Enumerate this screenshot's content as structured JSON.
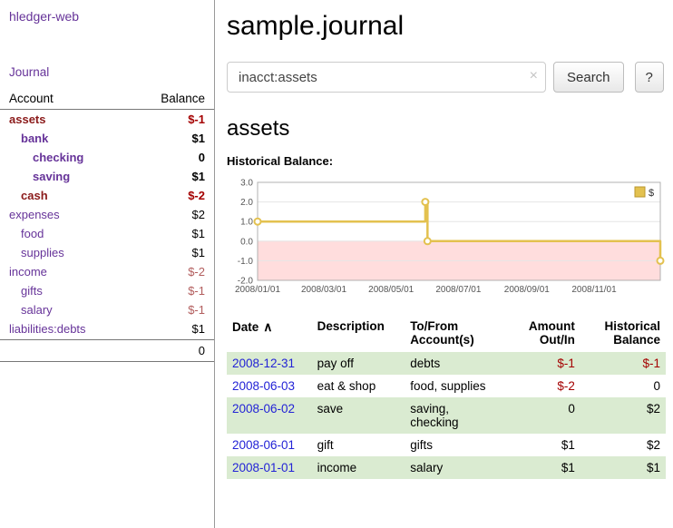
{
  "colors": {
    "accent_purple": "#663399",
    "name_maroon": "#8b1a1a",
    "negative_red": "#a40000",
    "negative_soft": "#b25d5d",
    "date_link_blue": "#2323d6",
    "row_green": "#daebd1",
    "chart_gold": "#e3c14f",
    "chart_region_pink": "#ffdddd"
  },
  "sidebar": {
    "app_title": "hledger-web",
    "journal_link": "Journal",
    "headers": {
      "account": "Account",
      "balance": "Balance"
    },
    "accounts": [
      {
        "label": "assets",
        "balance": "$-1",
        "indent": 0,
        "bold": true,
        "label_style": "maroon",
        "balance_style": "neg"
      },
      {
        "label": "bank",
        "balance": "$1",
        "indent": 1,
        "bold": true,
        "label_style": "purple",
        "balance_style": "normal"
      },
      {
        "label": "checking",
        "balance": "0",
        "indent": 2,
        "bold": true,
        "label_style": "purple",
        "balance_style": "normal"
      },
      {
        "label": "saving",
        "balance": "$1",
        "indent": 2,
        "bold": true,
        "label_style": "purple",
        "balance_style": "normal"
      },
      {
        "label": "cash",
        "balance": "$-2",
        "indent": 1,
        "bold": true,
        "label_style": "maroon",
        "balance_style": "neg"
      },
      {
        "label": "expenses",
        "balance": "$2",
        "indent": 0,
        "bold": false,
        "label_style": "purple",
        "balance_style": "normal"
      },
      {
        "label": "food",
        "balance": "$1",
        "indent": 1,
        "bold": false,
        "label_style": "purple",
        "balance_style": "normal"
      },
      {
        "label": "supplies",
        "balance": "$1",
        "indent": 1,
        "bold": false,
        "label_style": "purple",
        "balance_style": "normal"
      },
      {
        "label": "income",
        "balance": "$-2",
        "indent": 0,
        "bold": false,
        "label_style": "purple",
        "balance_style": "neg-soft"
      },
      {
        "label": "gifts",
        "balance": "$-1",
        "indent": 1,
        "bold": false,
        "label_style": "purple",
        "balance_style": "neg-soft"
      },
      {
        "label": "salary",
        "balance": "$-1",
        "indent": 1,
        "bold": false,
        "label_style": "purple",
        "balance_style": "neg-soft"
      },
      {
        "label": "liabilities:debts",
        "balance": "$1",
        "indent": 0,
        "bold": false,
        "label_style": "purple",
        "balance_style": "normal"
      }
    ],
    "total": "0"
  },
  "main": {
    "title": "sample.journal",
    "search": {
      "value": "inacct:assets",
      "clear_icon": "×",
      "button_label": "Search",
      "help_label": "?"
    },
    "account_heading": "assets",
    "chart_label": "Historical Balance:",
    "table": {
      "sort_icon": "∧",
      "headers": {
        "date": "Date",
        "description": "Description",
        "accounts": "To/From\nAccount(s)",
        "amount": "Amount\nOut/In",
        "balance": "Historical\nBalance"
      },
      "rows": [
        {
          "date": "2008-12-31",
          "description": "pay off",
          "accounts": "debts",
          "amount": "$-1",
          "amount_negative": true,
          "balance": "$-1",
          "balance_negative": true
        },
        {
          "date": "2008-06-03",
          "description": "eat & shop",
          "accounts": "food, supplies",
          "amount": "$-2",
          "amount_negative": true,
          "balance": "0",
          "balance_negative": false
        },
        {
          "date": "2008-06-02",
          "description": "save",
          "accounts": "saving,\nchecking",
          "amount": "0",
          "amount_negative": false,
          "balance": "$2",
          "balance_negative": false
        },
        {
          "date": "2008-06-01",
          "description": "gift",
          "accounts": "gifts",
          "amount": "$1",
          "amount_negative": false,
          "balance": "$2",
          "balance_negative": false
        },
        {
          "date": "2008-01-01",
          "description": "income",
          "accounts": "salary",
          "amount": "$1",
          "amount_negative": false,
          "balance": "$1",
          "balance_negative": false
        }
      ]
    }
  },
  "chart_data": {
    "type": "line",
    "title": "Historical Balance",
    "series": [
      {
        "name": "$",
        "step": true,
        "points": [
          [
            "2008-01-01",
            1.0
          ],
          [
            "2008-06-01",
            2.0
          ],
          [
            "2008-06-03",
            0.0
          ],
          [
            "2008-12-31",
            -1.0
          ]
        ]
      }
    ],
    "ylim": [
      -2.0,
      3.0
    ],
    "yticks": [
      3.0,
      2.0,
      1.0,
      0.0,
      -1.0,
      -2.0
    ],
    "xticks": [
      "2008/01/01",
      "2008/03/01",
      "2008/05/01",
      "2008/07/01",
      "2008/09/01",
      "2008/11/01"
    ],
    "xrange": [
      "2008-01-01",
      "2008-12-31"
    ],
    "grid": true,
    "legend": {
      "label": "$",
      "position": "top-right"
    },
    "line_color": "#e3c14f",
    "negative_region_color": "#ffdddd"
  }
}
